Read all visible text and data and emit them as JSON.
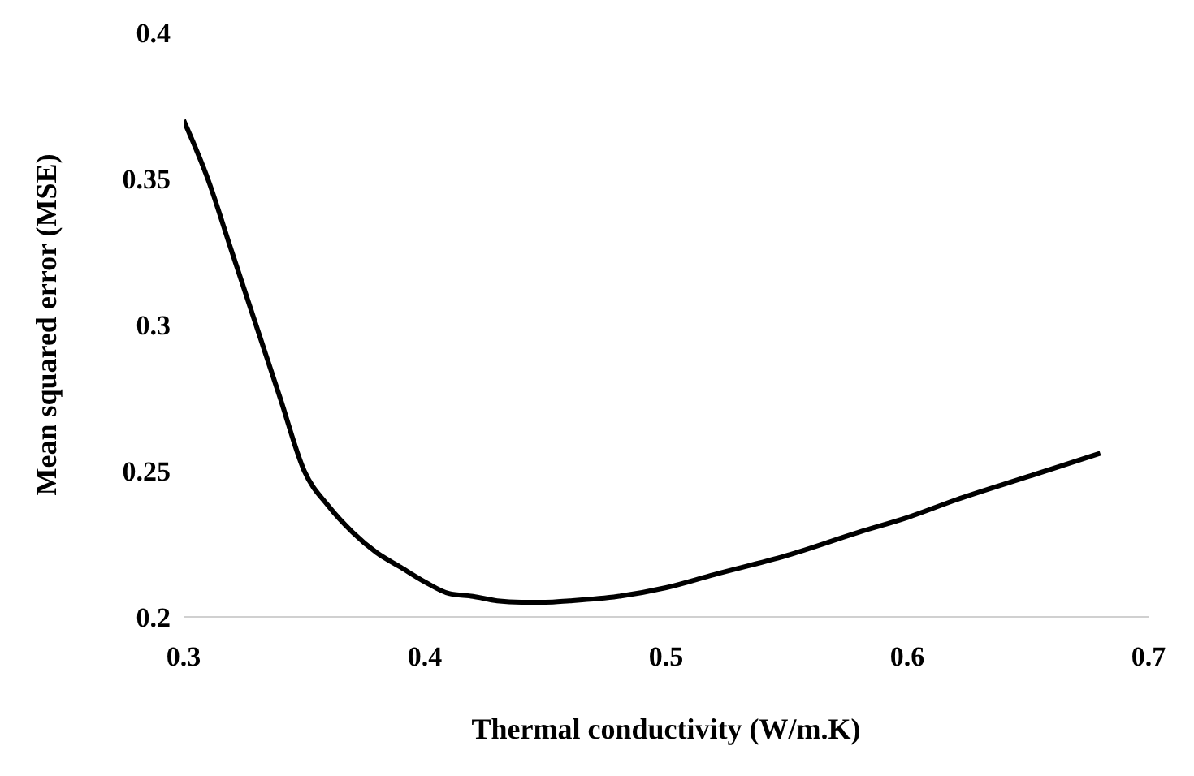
{
  "chart_data": {
    "type": "line",
    "xlabel": "Thermal conductivity (W/m.K)",
    "ylabel": "Mean squared error (MSE)",
    "x": [
      0.3,
      0.31,
      0.32,
      0.33,
      0.34,
      0.35,
      0.36,
      0.37,
      0.38,
      0.39,
      0.4,
      0.41,
      0.42,
      0.43,
      0.44,
      0.45,
      0.46,
      0.48,
      0.5,
      0.52,
      0.55,
      0.58,
      0.6,
      0.62,
      0.65,
      0.68
    ],
    "series": [
      {
        "color": "#000000",
        "values": [
          0.37,
          0.35,
          0.325,
          0.3,
          0.275,
          0.25,
          0.238,
          0.229,
          0.222,
          0.217,
          0.212,
          0.208,
          0.207,
          0.2055,
          0.205,
          0.205,
          0.2055,
          0.207,
          0.21,
          0.2145,
          0.221,
          0.229,
          0.234,
          0.24,
          0.248,
          0.256
        ]
      }
    ],
    "xlim": [
      0.3,
      0.7
    ],
    "xticks": [
      0.3,
      0.4,
      0.5,
      0.6,
      0.7
    ],
    "ylim": [
      0.2,
      0.4
    ],
    "yticks": [
      0.2,
      0.25,
      0.3,
      0.35,
      0.4
    ],
    "grid": false,
    "legend": false,
    "marker": "none",
    "line_style": "solid"
  }
}
